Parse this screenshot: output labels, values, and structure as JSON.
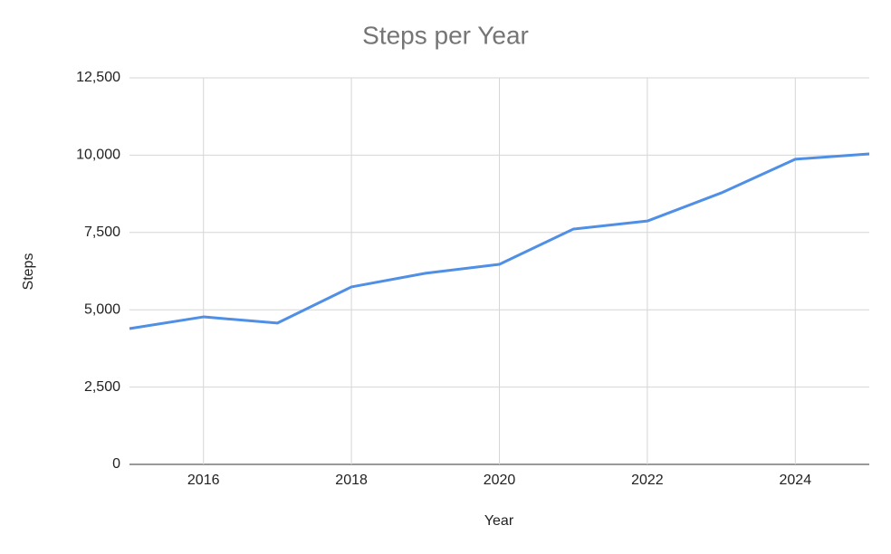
{
  "chart_data": {
    "type": "line",
    "title": "Steps per Year",
    "x_label": "Year",
    "y_label": "Steps",
    "x": [
      2015,
      2016,
      2017,
      2018,
      2019,
      2020,
      2021,
      2022,
      2023,
      2024,
      2025
    ],
    "series": [
      {
        "name": "Steps",
        "color": "#4f8fe6",
        "values": [
          4390,
          4770,
          4570,
          5740,
          6180,
          6470,
          7610,
          7870,
          8780,
          9870,
          10040
        ]
      }
    ],
    "xlim": [
      2015,
      2025
    ],
    "xticks": [
      2016,
      2018,
      2020,
      2022,
      2024
    ],
    "ylim": [
      0,
      12500
    ],
    "yticks": [
      0,
      {
        "value": 2500,
        "label": "2,500"
      },
      {
        "value": 5000,
        "label": "5,000"
      },
      {
        "value": 7500,
        "label": "7,500"
      },
      {
        "value": 10000,
        "label": "10,000"
      },
      {
        "value": 12500,
        "label": "12,500"
      }
    ],
    "grid": true
  }
}
